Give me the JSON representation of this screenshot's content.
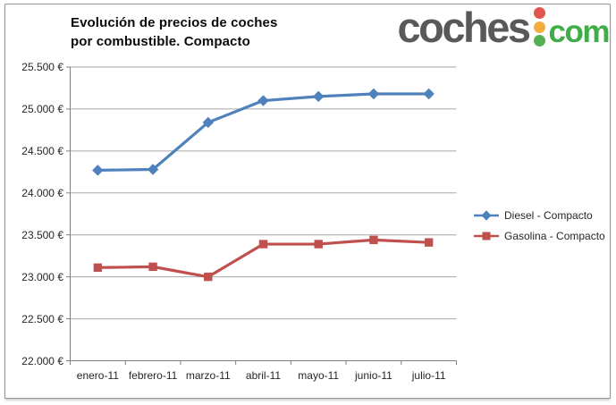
{
  "title": {
    "line1": "Evolución de precios de coches",
    "line2": "por combustible. Compacto"
  },
  "logo": {
    "word": "coches",
    "tld": "com",
    "colors": {
      "word": "#59595b",
      "tld": "#3fae49",
      "dot_top": "#e25650",
      "dot_middle": "#f2ae3d",
      "dot_bottom": "#55b054"
    }
  },
  "chart_data": {
    "type": "line",
    "title": "Evolución de precios de coches por combustible. Compacto",
    "categories": [
      "enero-11",
      "febrero-11",
      "marzo-11",
      "abril-11",
      "mayo-11",
      "junio-11",
      "julio-11"
    ],
    "series": [
      {
        "name": "Diesel - Compacto",
        "marker": "diamond",
        "color": "#4f81bd",
        "values": [
          24270,
          24280,
          24840,
          25100,
          25150,
          25180,
          25180
        ]
      },
      {
        "name": "Gasolina - Compacto",
        "marker": "square",
        "color": "#c0504d",
        "values": [
          23110,
          23120,
          23000,
          23390,
          23390,
          23440,
          23410
        ]
      }
    ],
    "xlabel": "",
    "ylabel": "",
    "ylim": [
      22000,
      25500
    ],
    "ytick_step": 500,
    "ytick_labels": [
      "25.500 €",
      "25.000 €",
      "24.500 €",
      "24.000 €",
      "23.500 €",
      "23.000 €",
      "22.500 €",
      "22.000 €"
    ],
    "grid": true,
    "legend_position": "right",
    "colors": {
      "gridline": "#a6a6a6",
      "axis": "#808080",
      "tick_text": "#262626",
      "legend_text": "#262626"
    }
  }
}
